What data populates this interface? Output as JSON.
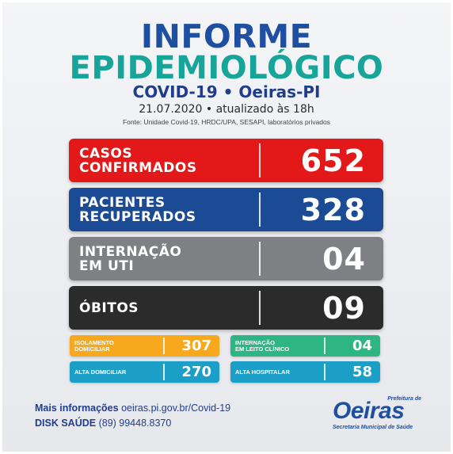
{
  "header": {
    "title_line1": "INFORME",
    "title_line2": "EPIDEMIOLÓGICO",
    "subtitle": "COVID-19 • Oeiras-PI",
    "dateline": "21.07.2020 • atualizado às 18h",
    "source": "Fonte: Unidade Covid-19, HRDC/UPA, SESAPI, laboratórios privados"
  },
  "cards": [
    {
      "label": "CASOS\nCONFIRMADOS",
      "value": "652",
      "color": "#e31818"
    },
    {
      "label": "PACIENTES\nRECUPERADOS",
      "value": "328",
      "color": "#1a4b94"
    },
    {
      "label": "INTERNAÇÃO\nEM UTI",
      "value": "04",
      "color": "#7f8083"
    },
    {
      "label": "ÓBITOS",
      "value": "09",
      "color": "#2b2b2c"
    }
  ],
  "mini_cards": [
    {
      "label": "ISOLAMENTO\nDOMICILIAR",
      "value": "307",
      "color": "#f7a81c"
    },
    {
      "label": "INTERNAÇÃO\nEM LEITO CLÍNICO",
      "value": "04",
      "color": "#2db584"
    },
    {
      "label": "ALTA DOMICILIAR",
      "value": "270",
      "color": "#1c9fc7"
    },
    {
      "label": "ALTA HOSPITALAR",
      "value": "58",
      "color": "#1c9fc7"
    }
  ],
  "footer": {
    "more_info_label": "Mais informações",
    "more_info_url": "oeiras.pi.gov.br/Covid-19",
    "disk_label": "DISK SAÚDE",
    "disk_number": "(89) 99448.8370"
  },
  "logo": {
    "prefix": "Prefeitura de",
    "name": "Oeiras",
    "department": "Secretaria Municipal de Saúde"
  }
}
